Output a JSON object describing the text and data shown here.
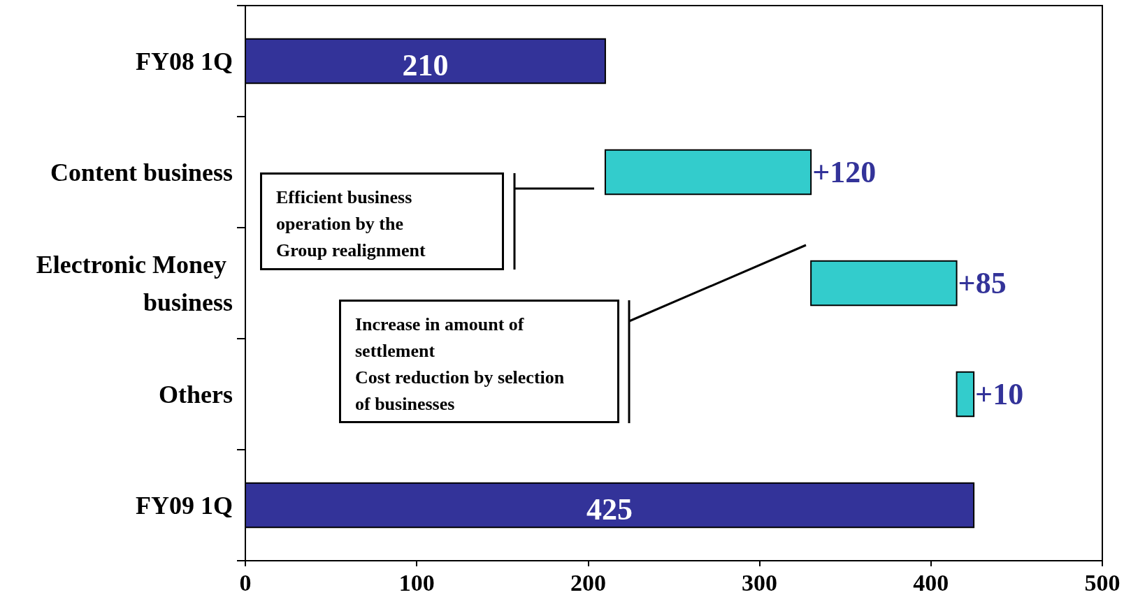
{
  "chart_data": {
    "type": "bar",
    "orientation": "horizontal",
    "categories": [
      "FY08 1Q",
      "Content business",
      "Electronic Money business",
      "Others",
      "FY09 1Q"
    ],
    "values": [
      210,
      120,
      85,
      10,
      425
    ],
    "base": [
      null,
      210,
      330,
      415,
      null
    ],
    "colors": [
      "#333399",
      "#33cccc",
      "#33cccc",
      "#33cccc",
      "#333399"
    ],
    "value_labels": [
      "210",
      "+120",
      "+85",
      "+10",
      "425"
    ],
    "xlim": [
      0,
      500
    ],
    "xticks": [
      0,
      100,
      200,
      300,
      400,
      500
    ],
    "grid": false,
    "annotations": [
      "Efficient business operation by the Group realignment",
      "Increase in amount of settlement\nCost reduction by selection of businesses"
    ]
  }
}
